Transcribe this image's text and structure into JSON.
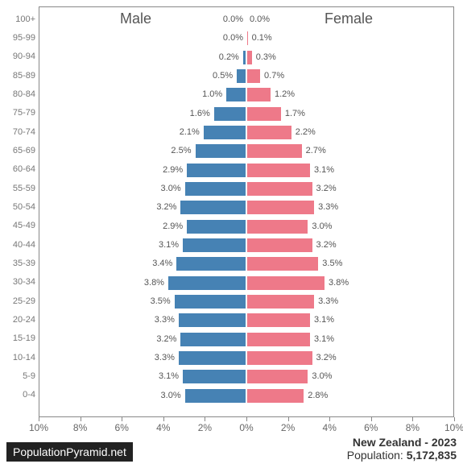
{
  "chart": {
    "type": "population-pyramid",
    "male_label": "Male",
    "female_label": "Female",
    "male_color": "#4682b4",
    "female_color": "#ee7989",
    "background_color": "#ffffff",
    "border_color": "#888888",
    "label_color": "#555555",
    "tick_color": "#666666",
    "age_label_color": "#777777",
    "header_fontsize": 18,
    "value_fontsize": 11,
    "age_fontsize": 11,
    "tick_fontsize": 12,
    "x_max_pct": 10,
    "x_ticks": [
      "10%",
      "8%",
      "6%",
      "4%",
      "2%",
      "0%",
      "2%",
      "4%",
      "6%",
      "8%",
      "10%"
    ],
    "age_groups": [
      {
        "label": "100+",
        "male": 0.0,
        "female": 0.0
      },
      {
        "label": "95-99",
        "male": 0.0,
        "female": 0.1
      },
      {
        "label": "90-94",
        "male": 0.2,
        "female": 0.3
      },
      {
        "label": "85-89",
        "male": 0.5,
        "female": 0.7
      },
      {
        "label": "80-84",
        "male": 1.0,
        "female": 1.2
      },
      {
        "label": "75-79",
        "male": 1.6,
        "female": 1.7
      },
      {
        "label": "70-74",
        "male": 2.1,
        "female": 2.2
      },
      {
        "label": "65-69",
        "male": 2.5,
        "female": 2.7
      },
      {
        "label": "60-64",
        "male": 2.9,
        "female": 3.1
      },
      {
        "label": "55-59",
        "male": 3.0,
        "female": 3.2
      },
      {
        "label": "50-54",
        "male": 3.2,
        "female": 3.3
      },
      {
        "label": "45-49",
        "male": 2.9,
        "female": 3.0
      },
      {
        "label": "40-44",
        "male": 3.1,
        "female": 3.2
      },
      {
        "label": "35-39",
        "male": 3.4,
        "female": 3.5
      },
      {
        "label": "30-34",
        "male": 3.8,
        "female": 3.8
      },
      {
        "label": "25-29",
        "male": 3.5,
        "female": 3.3
      },
      {
        "label": "20-24",
        "male": 3.3,
        "female": 3.1
      },
      {
        "label": "15-19",
        "male": 3.2,
        "female": 3.1
      },
      {
        "label": "10-14",
        "male": 3.3,
        "female": 3.2
      },
      {
        "label": "5-9",
        "male": 3.1,
        "female": 3.0
      },
      {
        "label": "0-4",
        "male": 3.0,
        "female": 2.8
      }
    ]
  },
  "footer": {
    "badge": "PopulationPyramid.net",
    "badge_bg": "#222222",
    "badge_fg": "#ffffff",
    "country_year": "New Zealand - 2023",
    "population_label": "Population: ",
    "population_value": "5,172,835",
    "meta_fontsize": 14
  }
}
